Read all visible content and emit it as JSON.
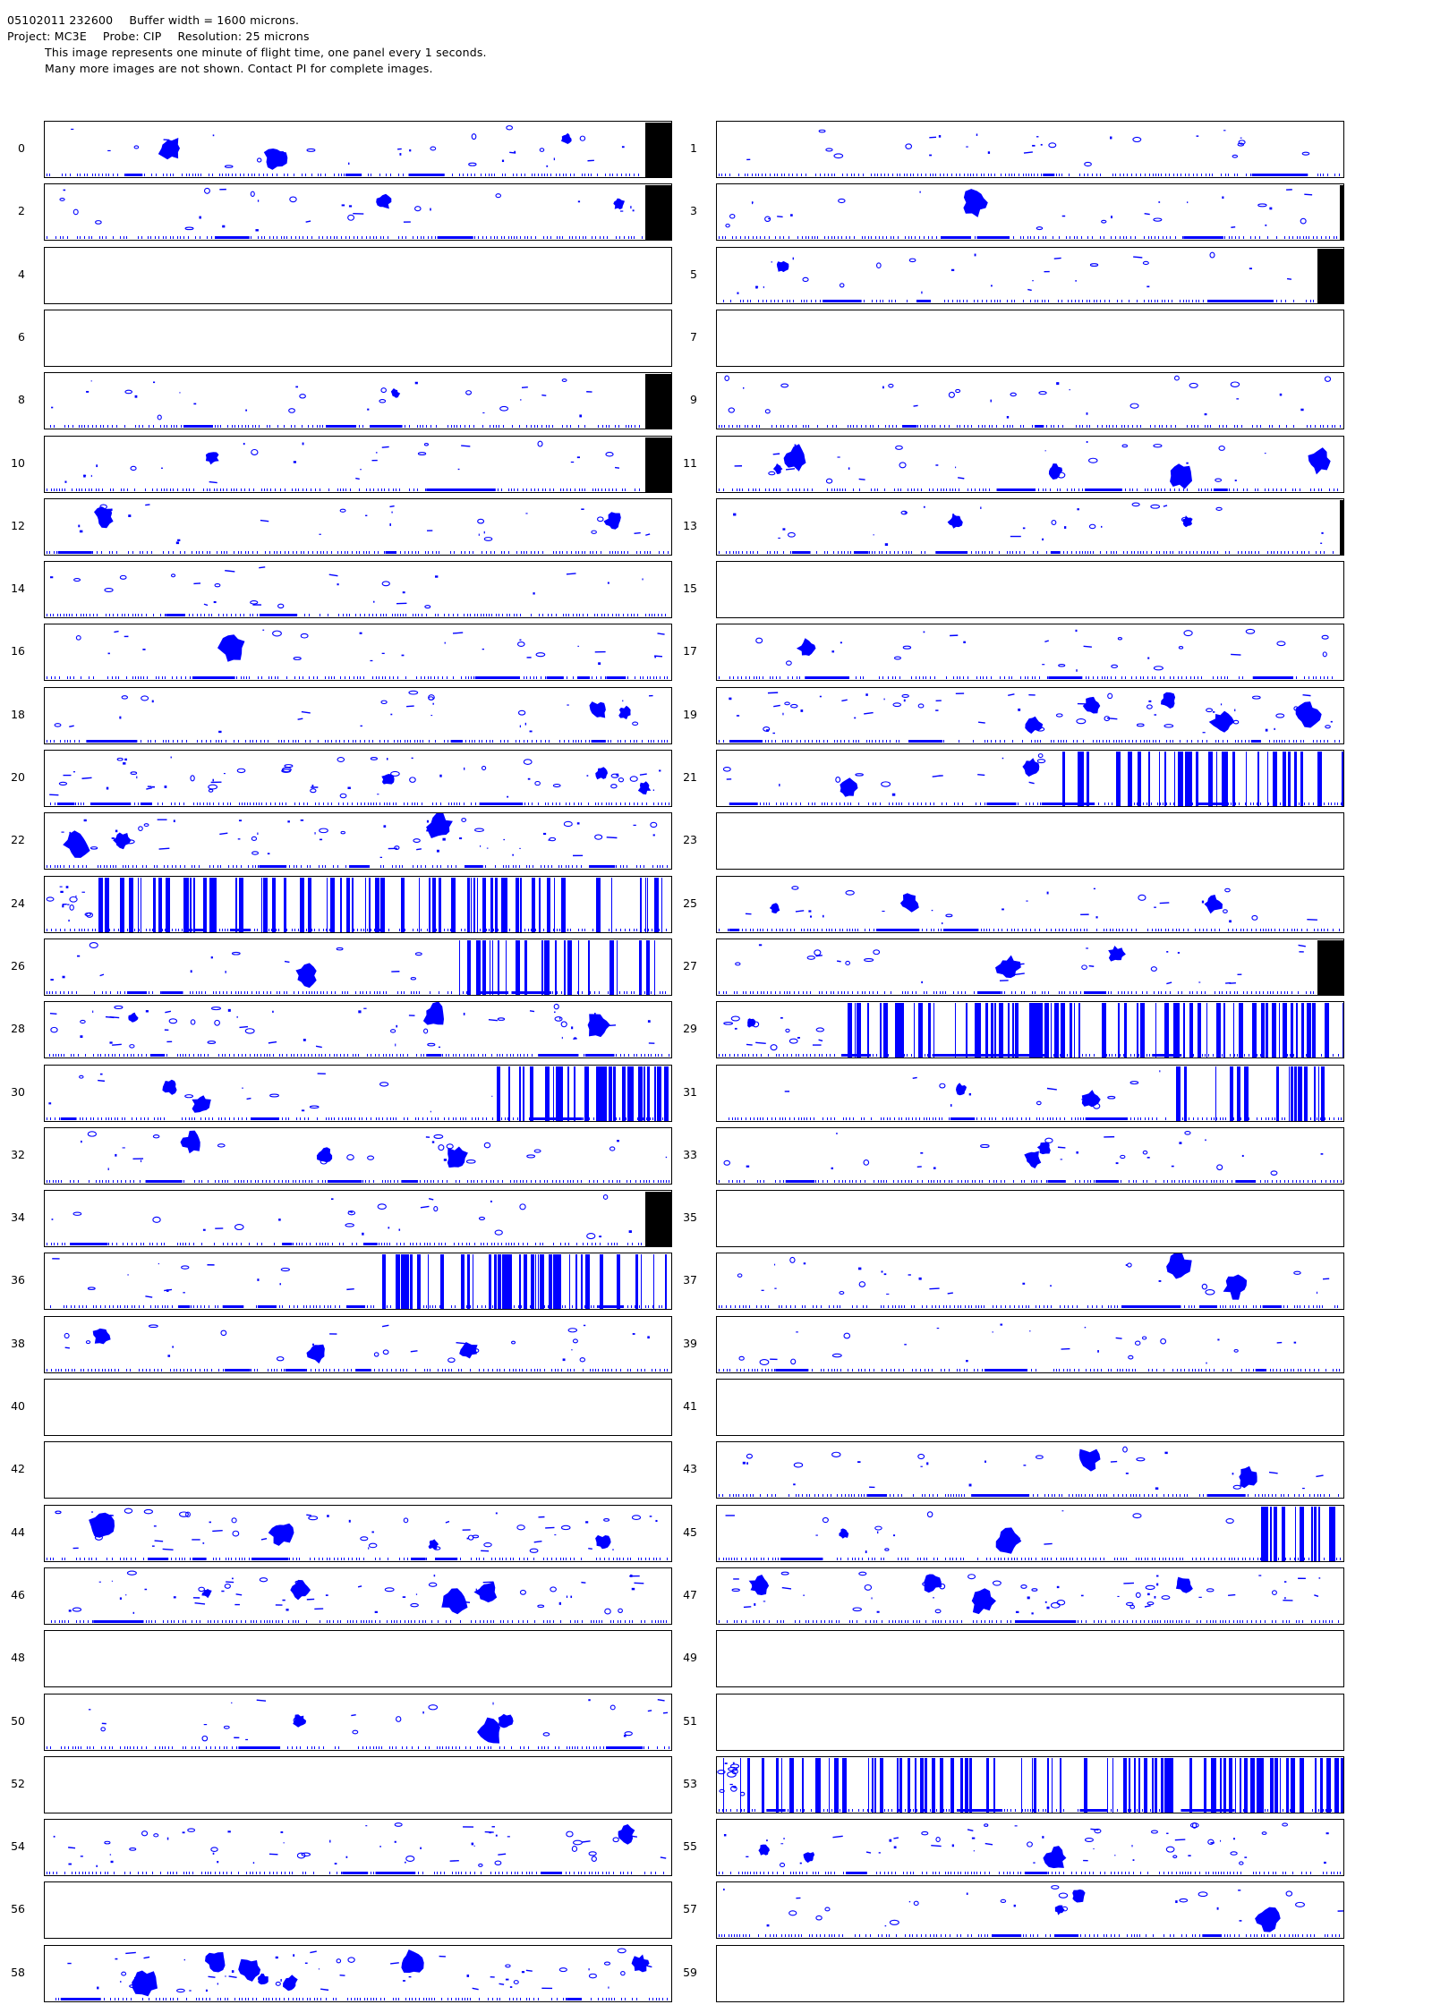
{
  "header": {
    "line1_datetime": "05102011 232600",
    "line1_buffer": "Buffer width = 1600 microns.",
    "line2_project": "Project: MC3E",
    "line2_probe": "Probe: CIP",
    "line2_resolution": "Resolution: 25 microns",
    "line3": "This image represents one minute of flight time, one panel every 1 seconds.",
    "line4": "Many more images are not shown.  Contact PI for complete images."
  },
  "colors": {
    "particle": "#0000ff",
    "frame": "#000000",
    "overload_block": "#000000"
  },
  "panels": [
    {
      "label": "0",
      "kind": "sparse",
      "blobs": 3,
      "black_bar": "wide",
      "timeline": true
    },
    {
      "label": "1",
      "kind": "sparse",
      "blobs": 0,
      "black_bar": "none",
      "timeline": true
    },
    {
      "label": "2",
      "kind": "sparse",
      "blobs": 2,
      "black_bar": "wide",
      "timeline": true
    },
    {
      "label": "3",
      "kind": "sparse",
      "blobs": 1,
      "black_bar": "thin",
      "timeline": true
    },
    {
      "label": "4",
      "kind": "empty",
      "blobs": 0,
      "black_bar": "none",
      "timeline": false
    },
    {
      "label": "5",
      "kind": "sparse",
      "blobs": 1,
      "black_bar": "wide",
      "timeline": true
    },
    {
      "label": "6",
      "kind": "empty",
      "blobs": 0,
      "black_bar": "none",
      "timeline": false
    },
    {
      "label": "7",
      "kind": "empty",
      "blobs": 0,
      "black_bar": "none",
      "timeline": false
    },
    {
      "label": "8",
      "kind": "sparse",
      "blobs": 1,
      "black_bar": "wide",
      "timeline": true
    },
    {
      "label": "9",
      "kind": "sparse",
      "blobs": 0,
      "black_bar": "none",
      "timeline": true
    },
    {
      "label": "10",
      "kind": "sparse",
      "blobs": 1,
      "black_bar": "wide",
      "timeline": true
    },
    {
      "label": "11",
      "kind": "sparse",
      "blobs": 5,
      "black_bar": "none",
      "timeline": true
    },
    {
      "label": "12",
      "kind": "sparse",
      "blobs": 2,
      "black_bar": "none",
      "timeline": true
    },
    {
      "label": "13",
      "kind": "sparse",
      "blobs": 2,
      "black_bar": "thin",
      "timeline": true
    },
    {
      "label": "14",
      "kind": "sparse",
      "blobs": 0,
      "black_bar": "none",
      "timeline": true
    },
    {
      "label": "15",
      "kind": "empty",
      "blobs": 0,
      "black_bar": "none",
      "timeline": false
    },
    {
      "label": "16",
      "kind": "sparse",
      "blobs": 1,
      "black_bar": "none",
      "timeline": true
    },
    {
      "label": "17",
      "kind": "sparse",
      "blobs": 1,
      "black_bar": "none",
      "timeline": true
    },
    {
      "label": "18",
      "kind": "sparse",
      "blobs": 2,
      "black_bar": "none",
      "timeline": true
    },
    {
      "label": "19",
      "kind": "dense",
      "blobs": 5,
      "black_bar": "none",
      "timeline": true
    },
    {
      "label": "20",
      "kind": "dense",
      "blobs": 3,
      "black_bar": "none",
      "timeline": true
    },
    {
      "label": "21",
      "kind": "streaks",
      "blobs": 2,
      "streak_start": 0.55,
      "black_bar": "none",
      "timeline": true
    },
    {
      "label": "22",
      "kind": "dense",
      "blobs": 3,
      "black_bar": "none",
      "timeline": true
    },
    {
      "label": "23",
      "kind": "empty",
      "blobs": 0,
      "black_bar": "none",
      "timeline": false
    },
    {
      "label": "24",
      "kind": "streaks",
      "blobs": 0,
      "streak_start": 0.08,
      "black_bar": "none",
      "timeline": true
    },
    {
      "label": "25",
      "kind": "sparse",
      "blobs": 3,
      "black_bar": "none",
      "timeline": true
    },
    {
      "label": "26",
      "kind": "streaks",
      "blobs": 1,
      "streak_start": 0.66,
      "black_bar": "none",
      "timeline": true
    },
    {
      "label": "27",
      "kind": "sparse",
      "blobs": 2,
      "black_bar": "wide",
      "timeline": true
    },
    {
      "label": "28",
      "kind": "dense",
      "blobs": 3,
      "black_bar": "none",
      "timeline": true
    },
    {
      "label": "29",
      "kind": "streaks",
      "blobs": 1,
      "streak_start": 0.18,
      "black_bar": "none",
      "timeline": true
    },
    {
      "label": "30",
      "kind": "streaks",
      "blobs": 2,
      "streak_start": 0.72,
      "black_bar": "none",
      "timeline": true
    },
    {
      "label": "31",
      "kind": "streaks",
      "blobs": 2,
      "streak_start": 0.72,
      "black_bar": "none",
      "timeline": true
    },
    {
      "label": "32",
      "kind": "sparse",
      "blobs": 3,
      "black_bar": "none",
      "timeline": true
    },
    {
      "label": "33",
      "kind": "sparse",
      "blobs": 2,
      "black_bar": "none",
      "timeline": true
    },
    {
      "label": "34",
      "kind": "sparse",
      "blobs": 0,
      "black_bar": "wide",
      "timeline": true
    },
    {
      "label": "35",
      "kind": "empty",
      "blobs": 0,
      "black_bar": "none",
      "timeline": false
    },
    {
      "label": "36",
      "kind": "streaks",
      "blobs": 0,
      "streak_start": 0.53,
      "black_bar": "none",
      "timeline": true
    },
    {
      "label": "37",
      "kind": "sparse",
      "blobs": 2,
      "black_bar": "none",
      "timeline": true
    },
    {
      "label": "38",
      "kind": "sparse",
      "blobs": 3,
      "black_bar": "none",
      "timeline": true
    },
    {
      "label": "39",
      "kind": "sparse",
      "blobs": 0,
      "black_bar": "none",
      "timeline": true
    },
    {
      "label": "40",
      "kind": "empty",
      "blobs": 0,
      "black_bar": "none",
      "timeline": false
    },
    {
      "label": "41",
      "kind": "empty",
      "blobs": 0,
      "black_bar": "none",
      "timeline": false
    },
    {
      "label": "42",
      "kind": "empty",
      "blobs": 0,
      "black_bar": "none",
      "timeline": false
    },
    {
      "label": "43",
      "kind": "sparse",
      "blobs": 2,
      "black_bar": "none",
      "timeline": true
    },
    {
      "label": "44",
      "kind": "dense",
      "blobs": 4,
      "black_bar": "none",
      "timeline": true
    },
    {
      "label": "45",
      "kind": "streaks",
      "blobs": 2,
      "streak_start": 0.86,
      "black_bar": "none",
      "timeline": true
    },
    {
      "label": "46",
      "kind": "dense",
      "blobs": 4,
      "black_bar": "none",
      "timeline": true
    },
    {
      "label": "47",
      "kind": "dense",
      "blobs": 4,
      "black_bar": "none",
      "timeline": true
    },
    {
      "label": "48",
      "kind": "empty",
      "blobs": 0,
      "black_bar": "none",
      "timeline": false
    },
    {
      "label": "49",
      "kind": "empty",
      "blobs": 0,
      "black_bar": "none",
      "timeline": false
    },
    {
      "label": "50",
      "kind": "sparse",
      "blobs": 3,
      "black_bar": "none",
      "timeline": true
    },
    {
      "label": "51",
      "kind": "empty",
      "blobs": 0,
      "black_bar": "none",
      "timeline": false
    },
    {
      "label": "52",
      "kind": "empty",
      "blobs": 0,
      "black_bar": "none",
      "timeline": false
    },
    {
      "label": "53",
      "kind": "streaks",
      "blobs": 0,
      "streak_start": 0.01,
      "black_bar": "none",
      "timeline": true
    },
    {
      "label": "54",
      "kind": "dense",
      "blobs": 1,
      "black_bar": "none",
      "timeline": true
    },
    {
      "label": "55",
      "kind": "dense",
      "blobs": 3,
      "black_bar": "none",
      "timeline": true
    },
    {
      "label": "56",
      "kind": "empty",
      "blobs": 0,
      "black_bar": "none",
      "timeline": false
    },
    {
      "label": "57",
      "kind": "sparse",
      "blobs": 3,
      "black_bar": "none",
      "timeline": true
    },
    {
      "label": "58",
      "kind": "dense",
      "blobs": 7,
      "black_bar": "none",
      "timeline": true
    },
    {
      "label": "59",
      "kind": "empty",
      "blobs": 0,
      "black_bar": "none",
      "timeline": false
    }
  ]
}
